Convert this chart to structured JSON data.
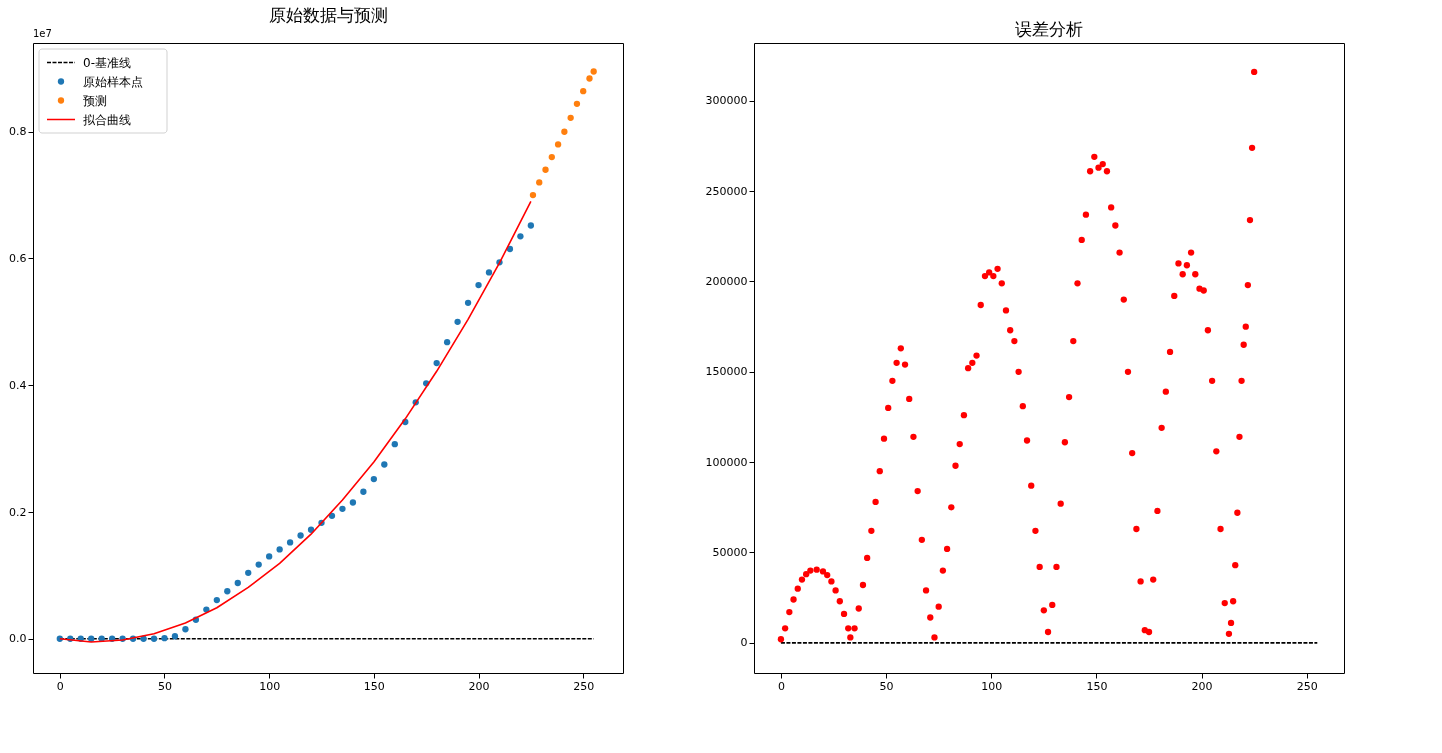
{
  "chart_data": [
    {
      "type": "scatter",
      "title": "原始数据与预测",
      "annotations": [
        "1e7"
      ],
      "legend": "top left",
      "xlim": [
        -12.8,
        269
      ],
      "ylim": [
        -0.054,
        0.94
      ],
      "xticks": [
        0,
        50,
        100,
        150,
        200,
        250
      ],
      "yticks": [
        {
          "value": 0,
          "label": "0.0"
        },
        0.2,
        0.4,
        0.6,
        0.8
      ],
      "series": [
        {
          "name": "0-基准线",
          "type": "line",
          "marker": "none",
          "line_style": "dashed",
          "color": "#000000",
          "x": [
            0,
            255
          ],
          "values": [
            0,
            0
          ]
        },
        {
          "name": "原始样本点",
          "type": "scatter",
          "marker": "circle",
          "color": "#1f77b4",
          "x": [
            0,
            5,
            10,
            15,
            20,
            25,
            30,
            35,
            40,
            45,
            50,
            55,
            60,
            65,
            70,
            75,
            80,
            85,
            90,
            95,
            100,
            105,
            110,
            115,
            120,
            125,
            130,
            135,
            140,
            145,
            150,
            155,
            160,
            165,
            170,
            175,
            180,
            185,
            190,
            195,
            200,
            205,
            210,
            215,
            220,
            225
          ],
          "values": [
            0,
            0,
            0,
            0,
            0,
            0,
            0,
            0,
            0,
            0,
            0.001,
            0.004,
            0.015,
            0.03,
            0.046,
            0.061,
            0.075,
            0.088,
            0.104,
            0.117,
            0.13,
            0.141,
            0.152,
            0.163,
            0.172,
            0.183,
            0.194,
            0.205,
            0.215,
            0.232,
            0.252,
            0.275,
            0.307,
            0.342,
            0.373,
            0.403,
            0.435,
            0.468,
            0.5,
            0.53,
            0.558,
            0.578,
            0.594,
            0.615,
            0.635,
            0.652
          ]
        },
        {
          "name": "预测",
          "type": "scatter",
          "marker": "circle",
          "color": "#ff7f0e",
          "x": [
            226,
            229,
            232,
            235,
            238,
            241,
            244,
            247,
            250,
            253,
            255
          ],
          "values": [
            0.7,
            0.72,
            0.74,
            0.76,
            0.78,
            0.8,
            0.822,
            0.844,
            0.864,
            0.884,
            0.895
          ]
        },
        {
          "name": "拟合曲线",
          "type": "line",
          "marker": "none",
          "line_style": "solid",
          "color": "#ff0000",
          "x": [
            0,
            15,
            30,
            45,
            60,
            75,
            90,
            105,
            120,
            135,
            150,
            165,
            180,
            195,
            210,
            225
          ],
          "values": [
            0,
            -0.005,
            -0.002,
            0.008,
            0.025,
            0.049,
            0.081,
            0.119,
            0.165,
            0.219,
            0.279,
            0.347,
            0.422,
            0.504,
            0.593,
            0.69
          ]
        }
      ]
    },
    {
      "type": "scatter",
      "title": "误差分析",
      "xlim": [
        -12.8,
        267.7
      ],
      "ylim": [
        -16700,
        332000
      ],
      "xticks": [
        0,
        50,
        100,
        150,
        200,
        250
      ],
      "yticks": [
        0,
        50000,
        100000,
        150000,
        200000,
        250000,
        300000
      ],
      "series": [
        {
          "type": "line",
          "marker": "none",
          "line_style": "dashed",
          "color": "#000000",
          "x": [
            0,
            255
          ],
          "values": [
            0,
            0
          ]
        },
        {
          "type": "scatter",
          "marker": "circle",
          "color": "#ff0000",
          "x": [
            0,
            2,
            4,
            6,
            8,
            10,
            12,
            14,
            17,
            20,
            22,
            24,
            26,
            28,
            30,
            32,
            33,
            35,
            37,
            39,
            41,
            43,
            45,
            47,
            49,
            51,
            53,
            55,
            57,
            59,
            61,
            63,
            65,
            67,
            69,
            71,
            73,
            75,
            77,
            79,
            81,
            83,
            85,
            87,
            89,
            91,
            93,
            95,
            97,
            99,
            101,
            103,
            105,
            107,
            109,
            111,
            113,
            115,
            117,
            119,
            121,
            123,
            125,
            127,
            129,
            131,
            133,
            135,
            137,
            139,
            141,
            143,
            145,
            147,
            149,
            151,
            153,
            155,
            157,
            159,
            161,
            163,
            165,
            167,
            169,
            171,
            173,
            175,
            177,
            179,
            181,
            183,
            185,
            187,
            189,
            191,
            193,
            195,
            197,
            199,
            201,
            203,
            205,
            207,
            209,
            211,
            213,
            214,
            215,
            216,
            217,
            218,
            219,
            220,
            221,
            222,
            223,
            224,
            225
          ],
          "values": [
            2000,
            8000,
            17000,
            24000,
            30000,
            35000,
            38000,
            40000,
            40500,
            39500,
            37500,
            34000,
            29000,
            23000,
            16000,
            8000,
            3000,
            8000,
            19000,
            32000,
            47000,
            62000,
            78000,
            95000,
            113000,
            130000,
            145000,
            155000,
            163000,
            154000,
            135000,
            114000,
            84000,
            57000,
            29000,
            14000,
            3000,
            20000,
            40000,
            52000,
            75000,
            98000,
            110000,
            126000,
            152000,
            155000,
            159000,
            187000,
            203000,
            205000,
            203000,
            207000,
            199000,
            184000,
            173000,
            167000,
            150000,
            131000,
            112000,
            87000,
            62000,
            42000,
            18000,
            6000,
            21000,
            42000,
            77000,
            111000,
            136000,
            167000,
            199000,
            223000,
            237000,
            261000,
            269000,
            263000,
            265000,
            261000,
            241000,
            231000,
            216000,
            190000,
            150000,
            105000,
            63000,
            34000,
            7000,
            6000,
            35000,
            73000,
            119000,
            139000,
            161000,
            192000,
            210000,
            204000,
            209000,
            216000,
            204000,
            196000,
            195000,
            173000,
            145000,
            106000,
            63000,
            22000,
            5000,
            11000,
            23000,
            43000,
            72000,
            114000,
            145000,
            165000,
            175000,
            198000,
            234000,
            274000,
            316000
          ]
        }
      ]
    }
  ]
}
